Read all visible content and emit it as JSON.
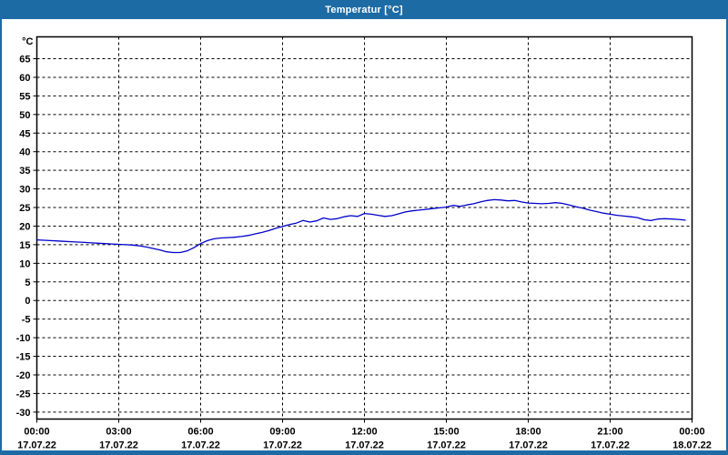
{
  "window": {
    "title": "Temperatur [°C]"
  },
  "colors": {
    "titlebar_bg": "#1C6BA5",
    "frame_bg": "#1C6BA5",
    "title_text": "#FFFFFF",
    "plot_bg": "#FFFFFF",
    "axis": "#000000",
    "grid": "#000000",
    "label_text": "#000000",
    "line": "#0000CC"
  },
  "chart_data": {
    "type": "line",
    "title": "Temperatur [°C]",
    "ylabel": "°C",
    "y_unit_label": "°C",
    "ylim": [
      -30,
      65
    ],
    "y_tick_step": 5,
    "y_ticks": [
      65,
      60,
      55,
      50,
      45,
      40,
      35,
      30,
      25,
      20,
      15,
      10,
      5,
      0,
      -5,
      -10,
      -15,
      -20,
      -25,
      -30
    ],
    "x_range_hours": [
      0,
      24
    ],
    "x_ticks": [
      {
        "hour": 0,
        "time": "00:00",
        "date": "17.07.22"
      },
      {
        "hour": 3,
        "time": "03:00",
        "date": "17.07.22"
      },
      {
        "hour": 6,
        "time": "06:00",
        "date": "17.07.22"
      },
      {
        "hour": 9,
        "time": "09:00",
        "date": "17.07.22"
      },
      {
        "hour": 12,
        "time": "12:00",
        "date": "17.07.22"
      },
      {
        "hour": 15,
        "time": "15:00",
        "date": "17.07.22"
      },
      {
        "hour": 18,
        "time": "18:00",
        "date": "17.07.22"
      },
      {
        "hour": 21,
        "time": "21:00",
        "date": "17.07.22"
      },
      {
        "hour": 24,
        "time": "00:00",
        "date": "18.07.22"
      }
    ],
    "grid": "dashed",
    "legend": "none",
    "series": [
      {
        "name": "Temperatur",
        "color": "#0000CC",
        "x_hours": [
          0,
          0.25,
          0.5,
          0.75,
          1,
          1.25,
          1.5,
          1.75,
          2,
          2.25,
          2.5,
          2.75,
          3,
          3.25,
          3.5,
          3.75,
          4,
          4.25,
          4.5,
          4.75,
          5,
          5.25,
          5.5,
          5.75,
          6,
          6.25,
          6.5,
          6.75,
          7,
          7.25,
          7.5,
          7.75,
          8,
          8.25,
          8.5,
          8.75,
          9,
          9.25,
          9.5,
          9.75,
          10,
          10.25,
          10.5,
          10.75,
          11,
          11.25,
          11.5,
          11.75,
          12,
          12.25,
          12.5,
          12.75,
          13,
          13.25,
          13.5,
          13.75,
          14,
          14.25,
          14.5,
          14.75,
          15,
          15.25,
          15.5,
          15.75,
          16,
          16.25,
          16.5,
          16.75,
          17,
          17.25,
          17.5,
          17.75,
          18,
          18.25,
          18.5,
          18.75,
          19,
          19.25,
          19.5,
          19.75,
          20,
          20.25,
          20.5,
          20.75,
          21,
          21.25,
          21.5,
          21.75,
          22,
          22.25,
          22.5,
          22.75,
          23,
          23.25,
          23.5,
          23.75
        ],
        "values": [
          16.3,
          16.2,
          16.1,
          16.0,
          15.9,
          15.8,
          15.7,
          15.6,
          15.5,
          15.4,
          15.3,
          15.2,
          15.1,
          15.0,
          14.9,
          14.7,
          14.4,
          14.0,
          13.6,
          13.1,
          12.9,
          12.9,
          13.3,
          14.2,
          15.3,
          16.1,
          16.6,
          16.8,
          16.9,
          17.0,
          17.2,
          17.5,
          17.9,
          18.3,
          18.8,
          19.4,
          19.9,
          20.4,
          20.8,
          21.5,
          21.1,
          21.4,
          22.2,
          21.8,
          22.0,
          22.5,
          22.8,
          22.6,
          23.4,
          23.2,
          22.9,
          22.6,
          22.8,
          23.3,
          23.8,
          24.1,
          24.3,
          24.5,
          24.7,
          24.9,
          25.1,
          25.6,
          25.3,
          25.7,
          26.0,
          26.5,
          26.9,
          27.1,
          27.0,
          26.8,
          26.9,
          26.5,
          26.2,
          26.1,
          26.0,
          26.1,
          26.3,
          26.1,
          25.7,
          25.2,
          24.8,
          24.3,
          23.9,
          23.5,
          23.2,
          22.9,
          22.7,
          22.5,
          22.3,
          21.7,
          21.5,
          21.9,
          22.0,
          21.9,
          21.8,
          21.6
        ]
      }
    ]
  }
}
